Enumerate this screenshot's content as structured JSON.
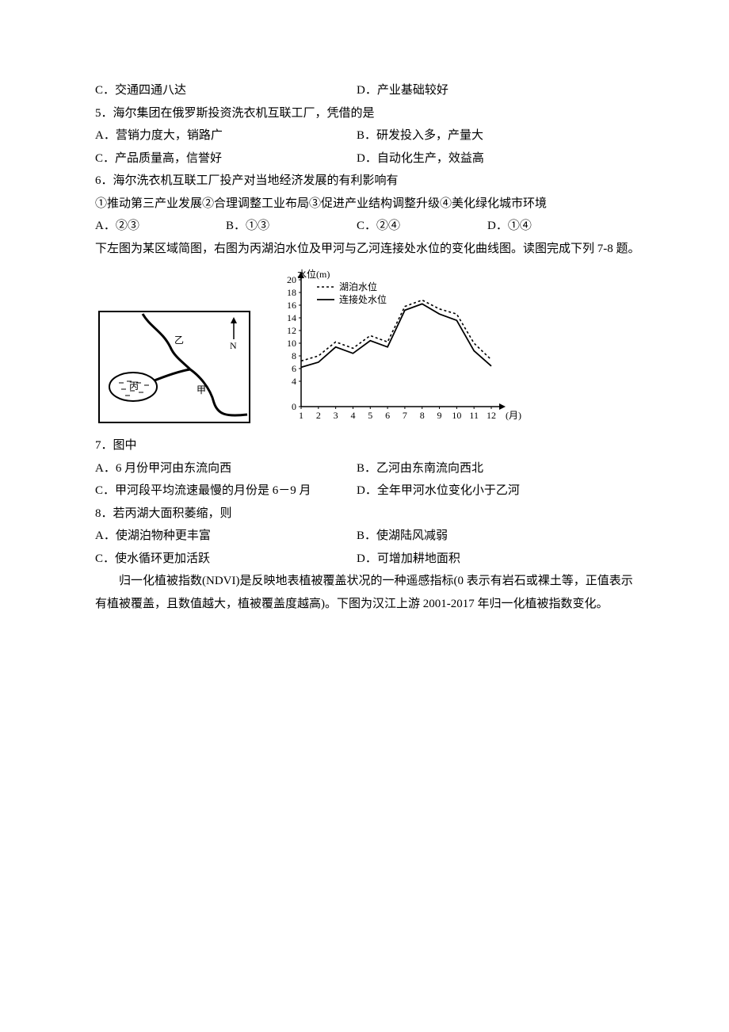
{
  "q_opts_cd": {
    "c": "C．交通四通八达",
    "d": "D．产业基础较好"
  },
  "q5": {
    "stem": "5．海尔集团在俄罗斯投资洗衣机互联工厂，凭借的是",
    "a": "A．营销力度大，销路广",
    "b": "B．研发投入多，产量大",
    "c": "C．产品质量高，信誉好",
    "d": "D．自动化生产，效益高"
  },
  "q6": {
    "stem": "6．海尔洗衣机互联工厂投产对当地经济发展的有利影响有",
    "items": "①推动第三产业发展②合理调整工业布局③促进产业结构调整升级④美化绿化城市环境",
    "a": "A．②③",
    "b": "B．①③",
    "c": "C．②④",
    "d": "D．①④"
  },
  "passage78": "下左图为某区域简图，右图为丙湖泊水位及甲河与乙河连接处水位的变化曲线图。读图完成下列 7-8 题。",
  "map": {
    "label_yi": "乙",
    "label_jia": "甲",
    "label_bing": "丙",
    "label_n": "N"
  },
  "chart": {
    "y_axis_title": "水位(m)",
    "y_ticks": [
      "0",
      "4",
      "6",
      "8",
      "10",
      "12",
      "14",
      "16",
      "18",
      "20"
    ],
    "y_values": [
      0,
      4,
      6,
      8,
      10,
      12,
      14,
      16,
      18,
      20
    ],
    "x_ticks": [
      "1",
      "2",
      "3",
      "4",
      "5",
      "6",
      "7",
      "8",
      "9",
      "10",
      "11",
      "12"
    ],
    "x_unit": "(月)",
    "legend": {
      "lake": "湖泊水位",
      "join": "连接处水位"
    },
    "lake_points": [
      {
        "m": 1,
        "v": 7.2
      },
      {
        "m": 2,
        "v": 8.0
      },
      {
        "m": 3,
        "v": 10.2
      },
      {
        "m": 4,
        "v": 9.2
      },
      {
        "m": 5,
        "v": 11.2
      },
      {
        "m": 6,
        "v": 10.2
      },
      {
        "m": 7,
        "v": 15.8
      },
      {
        "m": 8,
        "v": 16.8
      },
      {
        "m": 9,
        "v": 15.4
      },
      {
        "m": 10,
        "v": 14.6
      },
      {
        "m": 11,
        "v": 10.0
      },
      {
        "m": 12,
        "v": 7.4
      }
    ],
    "join_points": [
      {
        "m": 1,
        "v": 6.2
      },
      {
        "m": 2,
        "v": 7.0
      },
      {
        "m": 3,
        "v": 9.4
      },
      {
        "m": 4,
        "v": 8.4
      },
      {
        "m": 5,
        "v": 10.4
      },
      {
        "m": 6,
        "v": 9.4
      },
      {
        "m": 7,
        "v": 15.2
      },
      {
        "m": 8,
        "v": 16.2
      },
      {
        "m": 9,
        "v": 14.6
      },
      {
        "m": 10,
        "v": 13.6
      },
      {
        "m": 11,
        "v": 8.8
      },
      {
        "m": 12,
        "v": 6.4
      }
    ],
    "colors": {
      "axis": "#000000",
      "lake_stroke": "#000000",
      "join_stroke": "#000000"
    }
  },
  "q7": {
    "stem": "7．图中",
    "a": "A．6 月份甲河由东流向西",
    "b": "B．乙河由东南流向西北",
    "c": "C．甲河段平均流速最慢的月份是 6－9 月",
    "d": "D．全年甲河水位变化小于乙河"
  },
  "q8": {
    "stem": "8．若丙湖大面积萎缩，则",
    "a": "A．使湖泊物种更丰富",
    "b": "B．使湖陆风减弱",
    "c": "C．使水循环更加活跃",
    "d": "D．可增加耕地面积"
  },
  "passage9": "归一化植被指数(NDVI)是反映地表植被覆盖状况的一种遥感指标(0 表示有岩石或裸土等，正值表示有植被覆盖，且数值越大，植被覆盖度越高)。下图为汉江上游 2001-2017 年归一化植被指数变化。"
}
